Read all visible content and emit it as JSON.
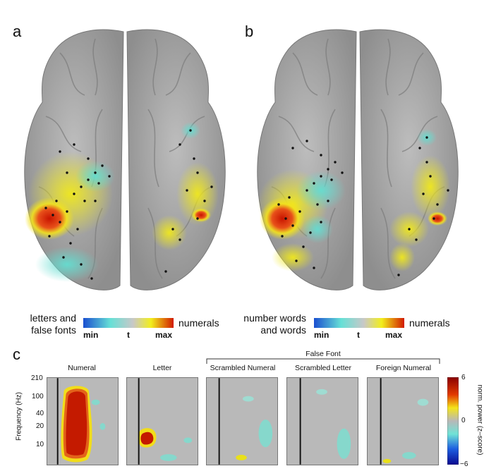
{
  "panels": {
    "a": {
      "letter": "a",
      "left_label": [
        "letters and",
        "false fonts"
      ],
      "right_label": "numerals",
      "ticks": [
        "min",
        "t",
        "max"
      ]
    },
    "b": {
      "letter": "b",
      "left_label": [
        "number words",
        "and words"
      ],
      "right_label": "numerals",
      "ticks": [
        "min",
        "t",
        "max"
      ]
    },
    "c": {
      "letter": "c",
      "group_label": "False Font",
      "conditions": [
        "Numeral",
        "Letter",
        "Scrambled Numeral",
        "Scrambled Letter",
        "Foreign Numeral"
      ],
      "y_axis_label": "Frequency (Hz)",
      "y_ticks": [
        "210",
        "100",
        "40",
        "20",
        "10"
      ],
      "colorbar_label": "norm. power (z–score)",
      "colorbar_ticks": [
        "6",
        "0",
        "−6"
      ]
    }
  },
  "colors": {
    "brain": "#a9a9a9",
    "hot": "#d22000",
    "warm": "#f4e81a",
    "cool": "#6fe0d2",
    "tf_bg": "#b9b9b9"
  }
}
